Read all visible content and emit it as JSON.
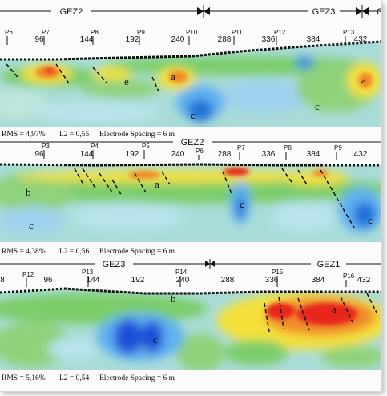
{
  "panels": [
    {
      "id": "p1",
      "zones": [
        "GEZ2",
        "GEZ3",
        "G"
      ],
      "electrodes": [
        "P6",
        "P7",
        "P8",
        "P9",
        "P10",
        "P11",
        "P12",
        "P13"
      ],
      "distances": [
        "96",
        "144",
        "192",
        "240",
        "288",
        "336",
        "384",
        "432"
      ],
      "letters": [
        "a",
        "e",
        "a",
        "c",
        "c",
        "a"
      ],
      "stats": {
        "rms": "RMS = 4,97%",
        "l2": "L2 = 0,55",
        "spacing": "Electrode Spacing = 6 m"
      }
    },
    {
      "id": "p2",
      "zones": [
        "GEZ2"
      ],
      "electrodes": [
        "P3",
        "P4",
        "P5",
        "P6",
        "P7",
        "P8",
        "P9"
      ],
      "distances": [
        "96",
        "144",
        "192",
        "240",
        "288",
        "336",
        "384",
        "432"
      ],
      "letters": [
        "b",
        "a",
        "c",
        "c",
        "c"
      ],
      "stats": {
        "rms": "RMS = 4,38%",
        "l2": "L2 = 0,56",
        "spacing": "Electrode Spacing = 6 m"
      }
    },
    {
      "id": "p3",
      "zones": [
        "GEZ3",
        "GEZ1"
      ],
      "electrodes": [
        "P12",
        "P13",
        "P14",
        "P15",
        "P16"
      ],
      "distances": [
        "8",
        "96",
        "144",
        "192",
        "240",
        "288",
        "336",
        "384",
        "432"
      ],
      "letters": [
        "b",
        "c",
        "a"
      ],
      "stats": {
        "rms": "RMS = 5,16%",
        "l2": "L2 = 0,54",
        "spacing": "Electrode Spacing = 6 m"
      }
    }
  ],
  "colors": {
    "low": "#1d4fd8",
    "low_mid": "#5fb0ef",
    "mid": "#7ccd6a",
    "high_mid": "#f5e13a",
    "high": "#e8251b"
  }
}
